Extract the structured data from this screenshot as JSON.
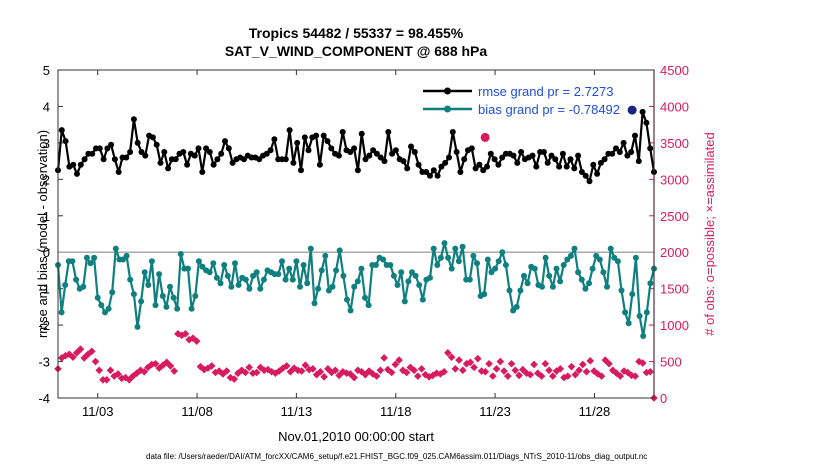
{
  "chart_data": {
    "type": "line",
    "title": "Tropics 54482 / 55337 = 98.455%",
    "subtitle": "SAT_V_WIND_COMPONENT @ 688 hPa",
    "xlabel": "Nov.01,2010 00:00:00 start",
    "ylabel_left": "rmse and bias (model - observation)",
    "ylabel_right": "# of obs: o=possible; ×=assimilated",
    "x_ticks": [
      "11/03",
      "11/08",
      "11/13",
      "11/18",
      "11/23",
      "11/28"
    ],
    "y_left_ticks": [
      "-4",
      "-3",
      "-2",
      "-1",
      "0",
      "1",
      "2",
      "3",
      "4",
      "5"
    ],
    "y_right_ticks": [
      "0",
      "500",
      "1000",
      "1500",
      "2000",
      "2500",
      "3000",
      "3500",
      "4000",
      "4500"
    ],
    "ylim_left": [
      -4,
      5
    ],
    "ylim_right": [
      0,
      4500
    ],
    "xlim": [
      0,
      30
    ],
    "zero_line": 0,
    "footer": "data file: /Users/raeder/DAI/ATM_forcXX/CAM6_setup/f.e21.FHIST_BGC.f09_025.CAM6assim.011/Diags_NTrS_2010-11/obs_diag_output.nc",
    "series": [
      {
        "name": "rmse grand pr = 2.7273",
        "color": "#000000",
        "values": [
          2.25,
          3.35,
          3.05,
          2.35,
          2.4,
          2.15,
          2.4,
          2.55,
          2.7,
          2.7,
          2.85,
          2.85,
          2.55,
          2.85,
          2.95,
          2.55,
          2.2,
          2.6,
          2.6,
          2.75,
          3.65,
          3.0,
          2.75,
          2.65,
          3.2,
          3.15,
          2.95,
          2.45,
          2.75,
          2.3,
          2.55,
          2.55,
          2.7,
          2.75,
          2.4,
          2.7,
          2.65,
          2.85,
          2.2,
          2.85,
          2.75,
          2.4,
          2.55,
          2.7,
          3.05,
          2.85,
          2.45,
          2.55,
          2.6,
          2.55,
          2.65,
          2.6,
          2.6,
          2.55,
          2.65,
          2.7,
          2.8,
          3.1,
          2.55,
          2.55,
          2.55,
          3.35,
          2.45,
          3.0,
          2.25,
          3.15,
          2.8,
          3.15,
          3.2,
          2.4,
          3.2,
          3.05,
          2.85,
          2.7,
          2.65,
          3.3,
          2.8,
          2.75,
          2.85,
          2.25,
          3.25,
          2.55,
          2.65,
          2.8,
          2.7,
          2.6,
          2.5,
          3.3,
          2.7,
          2.8,
          2.55,
          2.5,
          2.3,
          2.9,
          2.75,
          2.4,
          2.2,
          2.2,
          2.1,
          2.25,
          2.1,
          2.35,
          2.45,
          2.6,
          3.3,
          2.75,
          2.2,
          2.55,
          2.8,
          2.85,
          2.3,
          2.4,
          2.25,
          2.35,
          2.7,
          2.55,
          2.4,
          2.6,
          2.7,
          2.7,
          2.65,
          2.45,
          2.75,
          2.55,
          2.6,
          2.65,
          2.35,
          2.75,
          2.75,
          2.45,
          2.65,
          2.55,
          2.35,
          2.7,
          2.35,
          2.55,
          2.3,
          2.65,
          2.2,
          2.1,
          1.95,
          2.4,
          2.15,
          2.45,
          2.55,
          2.7,
          2.7,
          2.85,
          2.75,
          3.0,
          2.65,
          2.75,
          3.2,
          2.5,
          3.85,
          3.55,
          2.85,
          2.2
        ]
      },
      {
        "name": "bias grand pr = -0.78492",
        "color": "#0f7f7f",
        "values": [
          -0.35,
          -1.65,
          -0.9,
          -0.25,
          -0.25,
          -0.75,
          -1.0,
          -0.95,
          -0.15,
          -0.3,
          -0.15,
          -1.25,
          -1.45,
          -1.65,
          -1.55,
          -1.1,
          0.1,
          -0.2,
          -0.2,
          -0.1,
          -0.75,
          -1.15,
          -2.05,
          -1.35,
          -0.55,
          -0.9,
          -0.25,
          -1.45,
          -0.6,
          -1.2,
          -1.5,
          -0.95,
          -1.25,
          -1.55,
          -0.05,
          -0.45,
          -0.45,
          -1.55,
          -1.2,
          -0.25,
          -0.4,
          -0.5,
          -0.55,
          -0.3,
          -0.7,
          -0.85,
          -0.35,
          -0.65,
          -0.95,
          -0.3,
          -0.9,
          -0.7,
          -0.75,
          -1.0,
          -0.65,
          -0.55,
          -1.0,
          -0.75,
          -0.5,
          -0.55,
          -0.6,
          -0.6,
          -0.25,
          -0.75,
          -0.45,
          -0.75,
          -0.25,
          -0.95,
          -0.35,
          -0.85,
          0.1,
          -1.4,
          -1.0,
          -0.5,
          -0.1,
          -1.05,
          -0.95,
          -0.5,
          0.05,
          -0.65,
          -1.3,
          -1.6,
          -0.95,
          -0.8,
          -0.45,
          -1.25,
          -1.45,
          -0.35,
          -0.35,
          -0.15,
          -0.2,
          -0.35,
          -0.35,
          -0.65,
          -0.9,
          -0.55,
          -1.35,
          -0.8,
          -0.55,
          -0.65,
          -0.9,
          -1.3,
          -0.75,
          -0.7,
          0.1,
          -0.35,
          -0.15,
          0.25,
          -0.15,
          -0.45,
          0.1,
          -0.25,
          0.15,
          -0.75,
          -0.75,
          -0.1,
          -0.3,
          -1.2,
          -1.15,
          -0.2,
          -0.55,
          -0.45,
          -0.25,
          0.0,
          -0.35,
          -1.05,
          -1.6,
          -1.5,
          -1.05,
          -0.65,
          -0.85,
          -0.4,
          -0.45,
          -0.9,
          -0.95,
          -0.15,
          -0.65,
          -0.95,
          -0.45,
          -0.8,
          -0.35,
          -0.2,
          -0.1,
          0.1,
          -0.55,
          -0.75,
          -1.0,
          -0.85,
          -0.45,
          -0.1,
          -0.2,
          -0.55,
          -0.95,
          0.1,
          -0.15,
          -0.25,
          -1.05,
          -1.65,
          -1.95,
          -1.15,
          -0.15,
          -1.75,
          -2.3,
          -1.65,
          -0.85,
          -0.45
        ]
      }
    ],
    "obs_count": {
      "name": "assimilated",
      "color": "#d81b60",
      "values": [
        400,
        550,
        580,
        600,
        560,
        620,
        670,
        550,
        600,
        640,
        500,
        380,
        250,
        250,
        380,
        300,
        330,
        270,
        280,
        250,
        300,
        340,
        380,
        360,
        420,
        460,
        470,
        410,
        450,
        490,
        440,
        370,
        880,
        860,
        880,
        800,
        820,
        780,
        430,
        390,
        410,
        440,
        350,
        370,
        330,
        370,
        280,
        260,
        340,
        380,
        350,
        420,
        340,
        350,
        420,
        380,
        390,
        360,
        340,
        370,
        410,
        440,
        360,
        410,
        380,
        370,
        450,
        390,
        400,
        320,
        360,
        290,
        400,
        350,
        380,
        310,
        360,
        340,
        330,
        280,
        380,
        360,
        320,
        370,
        330,
        300,
        380,
        550,
        390,
        350,
        460,
        520,
        380,
        350,
        420,
        380,
        300,
        400,
        320,
        290,
        310,
        340,
        330,
        360,
        620,
        560,
        400,
        520,
        380,
        470,
        490,
        420,
        540,
        370,
        360,
        470,
        300,
        400,
        500,
        370,
        300,
        470,
        380,
        310,
        390,
        340,
        320,
        460,
        340,
        300,
        470,
        380,
        300,
        370,
        400,
        280,
        300,
        430,
        320,
        380,
        460,
        360,
        510,
        370,
        330,
        300,
        520,
        470,
        380,
        340,
        300,
        370,
        350,
        310,
        300,
        500,
        480,
        350,
        360,
        0
      ]
    },
    "highlight_points": [
      {
        "series": "rmse",
        "x": 21.5,
        "y": 3.15,
        "color": "#d81b60"
      },
      {
        "series": "rmse",
        "x": 28.9,
        "y": 3.9,
        "color": "#1a237e"
      }
    ]
  }
}
